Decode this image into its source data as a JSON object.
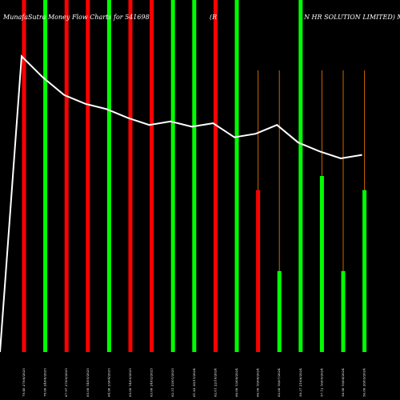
{
  "chart_data": {
    "type": "bar",
    "title": "MunafaSutra  Money Flow  Charts for 541698",
    "subtitle": "(R",
    "company": "N  HR SOLUTION  LIMITED) M",
    "ylim": [
      0,
      100
    ],
    "categories": [
      "79.40 27/06/2025",
      "78.60 24/06/2025",
      "67.97 27/05/2025",
      "65.00 14/05/2025",
      "64.90 23/04/2025",
      "65.00 14/03/2025",
      "63.00 24/02/2025",
      "62.31 22/01/2025",
      "61.83 28/11/2024",
      "62.01 22/10/2024",
      "66.00 13/09/2024",
      "66.00 16/08/2024",
      "62.00 18/07/2024",
      "59.37 21/06/2024",
      "57.12 16/05/2024",
      "58.90 19/04/2024",
      "56.00 26/03/2024"
    ],
    "bars": [
      {
        "flow": "out",
        "value": 100,
        "wick": 100
      },
      {
        "flow": "in",
        "value": 100,
        "wick": 100
      },
      {
        "flow": "out",
        "value": 100,
        "wick": 100
      },
      {
        "flow": "out",
        "value": 100,
        "wick": 100
      },
      {
        "flow": "in",
        "value": 100,
        "wick": 100
      },
      {
        "flow": "out",
        "value": 100,
        "wick": 100
      },
      {
        "flow": "out",
        "value": 100,
        "wick": 100
      },
      {
        "flow": "in",
        "value": 100,
        "wick": 100
      },
      {
        "flow": "in",
        "value": 100,
        "wick": 100
      },
      {
        "flow": "out",
        "value": 100,
        "wick": 100
      },
      {
        "flow": "in",
        "value": 100,
        "wick": 100
      },
      {
        "flow": "out",
        "value": 46,
        "wick": 80
      },
      {
        "flow": "in",
        "value": 23,
        "wick": 80
      },
      {
        "flow": "in",
        "value": 100,
        "wick": 100
      },
      {
        "flow": "in",
        "value": 50,
        "wick": 80
      },
      {
        "flow": "in",
        "value": 23,
        "wick": 80
      },
      {
        "flow": "in",
        "value": 46,
        "wick": 80
      }
    ],
    "line": [
      84,
      78,
      73,
      70.5,
      69,
      66.5,
      64.5,
      65.5,
      64,
      65,
      61,
      62,
      64.5,
      59.5,
      57,
      55,
      56
    ],
    "line_start": 0,
    "colors": {
      "in": "#00ff00",
      "out": "#ff0000",
      "line": "#ffffff",
      "wick": "#cc6600",
      "background": "#000000"
    }
  }
}
